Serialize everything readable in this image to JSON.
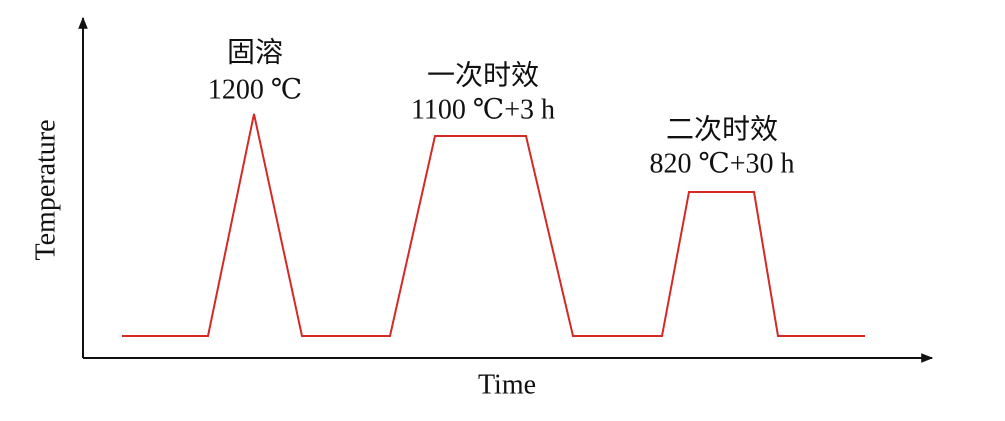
{
  "axes": {
    "y_label": "Temperature",
    "x_label": "Time"
  },
  "stages": [
    {
      "name": "固溶",
      "condition": "1200 ℃"
    },
    {
      "name": "一次时效",
      "condition": "1100 ℃+3 h"
    },
    {
      "name": "二次时效",
      "condition": "820 ℃+30 h"
    }
  ]
}
